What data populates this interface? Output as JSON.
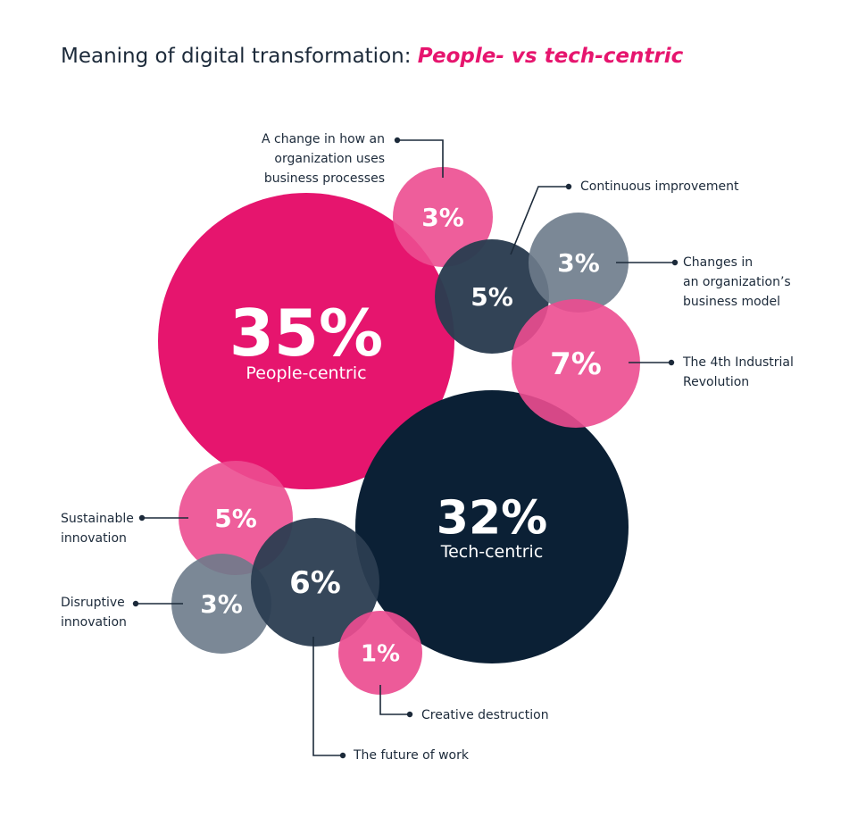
{
  "title": {
    "main": "Meaning of digital transformation: ",
    "accent": "People- vs tech-centric"
  },
  "colors": {
    "people_main": "#e6156e",
    "people": "#ec4d90",
    "tech_main": "#0b2035",
    "tech": "#2b3d51",
    "tech_light": "#6d7b8b",
    "text": "#1c2a3a"
  },
  "chart_data": {
    "type": "bubble",
    "groups": [
      {
        "name": "People-centric",
        "value": 35
      },
      {
        "name": "Tech-centric",
        "value": 32
      }
    ],
    "items": [
      {
        "label": "A change in how an organization uses business processes",
        "lines": [
          "A change in how an",
          "organization uses",
          "business processes"
        ],
        "value": 3,
        "group": "People-centric"
      },
      {
        "label": "Continuous improvement",
        "lines": [
          "Continuous improvement"
        ],
        "value": 5,
        "group": "Tech-centric"
      },
      {
        "label": "Changes in an organization’s business model",
        "lines": [
          "Changes in",
          "an organization’s",
          "business model"
        ],
        "value": 3,
        "group": "Tech-centric"
      },
      {
        "label": "The 4th Industrial Revolution",
        "lines": [
          "The 4th Industrial",
          "Revolution"
        ],
        "value": 7,
        "group": "People-centric"
      },
      {
        "label": "Sustainable innovation",
        "lines": [
          "Sustainable",
          "innovation"
        ],
        "value": 5,
        "group": "People-centric"
      },
      {
        "label": "Disruptive innovation",
        "lines": [
          "Disruptive",
          "innovation"
        ],
        "value": 3,
        "group": "Tech-centric"
      },
      {
        "label": "The future of work",
        "lines": [
          "The future of work"
        ],
        "value": 6,
        "group": "Tech-centric"
      },
      {
        "label": "Creative destruction",
        "lines": [
          "Creative destruction"
        ],
        "value": 1,
        "group": "People-centric"
      }
    ]
  }
}
